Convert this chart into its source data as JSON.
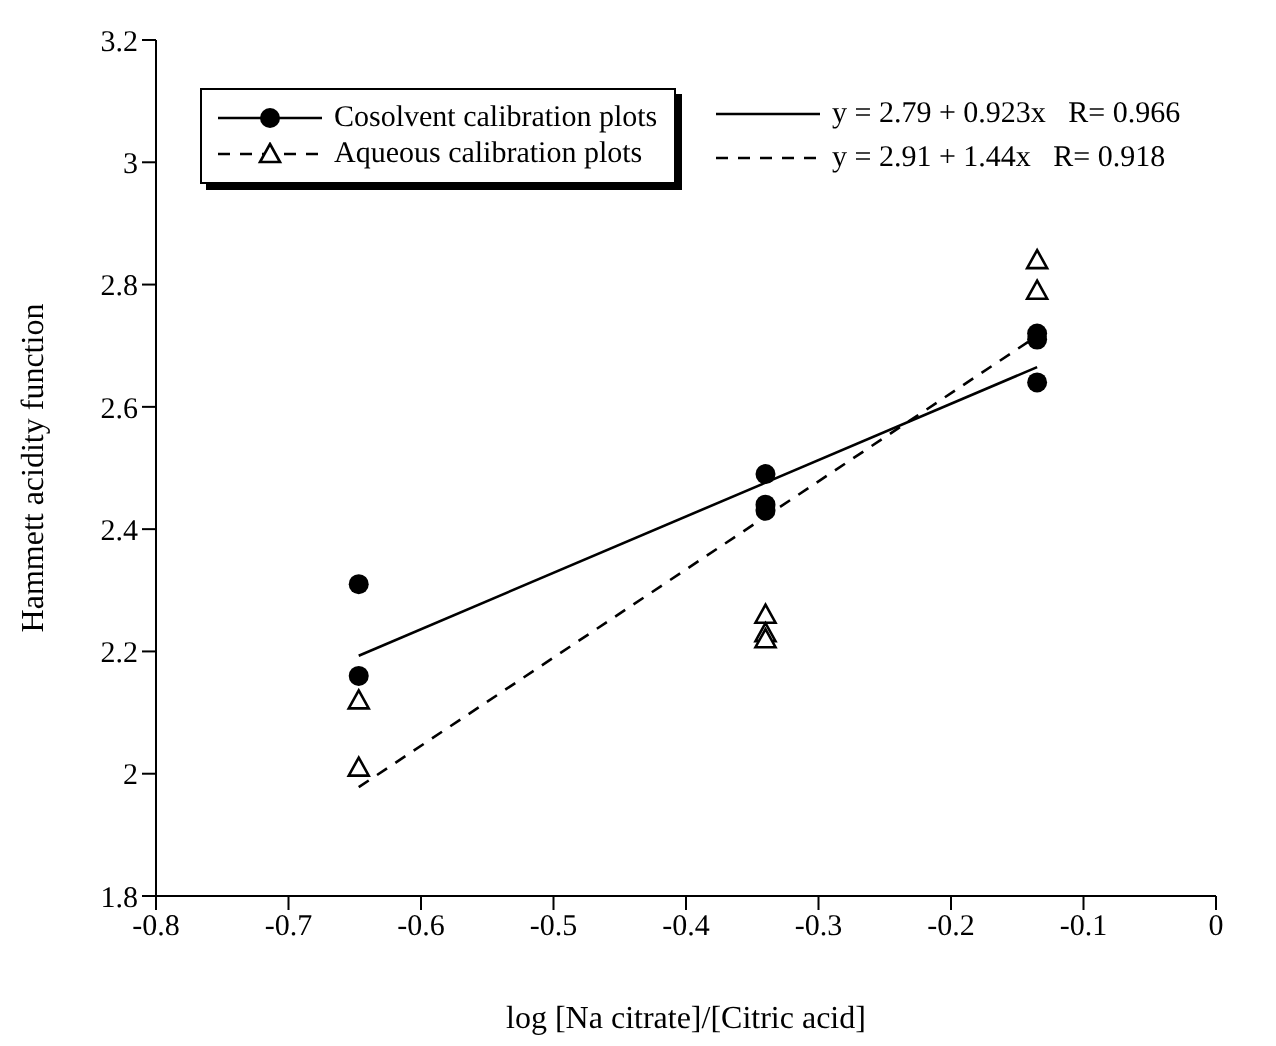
{
  "chart_data": {
    "type": "scatter",
    "xlabel": "log [Na citrate]/[Citric acid]",
    "ylabel": "Hammett acidity function",
    "xlim": [
      -0.8,
      0
    ],
    "xticks": [
      -0.8,
      -0.7,
      -0.6,
      -0.5,
      -0.4,
      -0.3,
      -0.2,
      -0.1,
      0
    ],
    "ylim": [
      1.8,
      3.2
    ],
    "yticks": [
      1.8,
      2,
      2.2,
      2.4,
      2.6,
      2.8,
      3,
      3.2
    ],
    "grid": false,
    "legend": "top left",
    "series": [
      {
        "name": "Cosolvent calibration plots",
        "marker": "circle",
        "line_style": "solid",
        "color": "#000000",
        "x": [
          -0.647,
          -0.647,
          -0.34,
          -0.34,
          -0.34,
          -0.135,
          -0.135,
          -0.135
        ],
        "values": [
          2.31,
          2.16,
          2.49,
          2.44,
          2.43,
          2.72,
          2.71,
          2.64
        ]
      },
      {
        "name": "Aqueous calibration plots",
        "marker": "triangle",
        "line_style": "dashed",
        "color": "#000000",
        "x": [
          -0.647,
          -0.647,
          -0.34,
          -0.34,
          -0.34,
          -0.135,
          -0.135
        ],
        "values": [
          2.12,
          2.01,
          2.26,
          2.23,
          2.22,
          2.84,
          2.79
        ]
      },
      {
        "name": "y = 2.79 + 0.923x   R= 0.966",
        "type": "line",
        "line_style": "solid",
        "marker": "none",
        "color": "#000000",
        "x": [
          -0.647,
          -0.135
        ],
        "values": [
          2.193,
          2.665
        ]
      },
      {
        "name": "y = 2.91 + 1.44x   R= 0.918",
        "type": "line",
        "line_style": "dashed",
        "marker": "none",
        "color": "#000000",
        "x": [
          -0.647,
          -0.135
        ],
        "values": [
          1.978,
          2.716
        ]
      }
    ]
  }
}
